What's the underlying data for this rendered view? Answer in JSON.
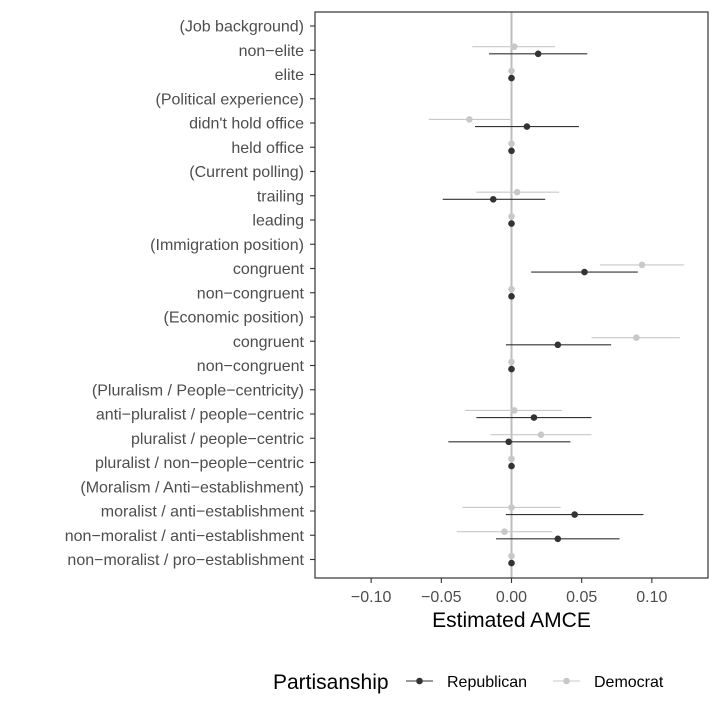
{
  "chart_data": {
    "type": "scatter",
    "xlabel": "Estimated AMCE",
    "xlim": [
      -0.14,
      0.14
    ],
    "xticks": [
      -0.1,
      -0.05,
      0.0,
      0.05,
      0.1
    ],
    "xtick_labels": [
      "−0.10",
      "−0.05",
      "0.00",
      "0.05",
      "0.10"
    ],
    "grid": false,
    "reference_line": 0,
    "categories": [
      "(Job background)",
      "non−elite",
      "elite",
      "(Political experience)",
      "didn't hold office",
      "held office",
      "(Current polling)",
      "trailing",
      "leading",
      "(Immigration position)",
      "congruent ",
      "non−congruent ",
      "(Economic position)",
      "congruent",
      "non−congruent",
      "(Pluralism / People−centricity)",
      "anti−pluralist / people−centric",
      "pluralist / people−centric",
      "pluralist / non−people−centric",
      "(Moralism / Anti−establishment)",
      "moralist / anti−establishment",
      "non−moralist / anti−establishment",
      "non−moralist / pro−establishment"
    ],
    "series": [
      {
        "name": "Republican",
        "color": "#333333",
        "values": [
          null,
          0.019,
          0.0,
          null,
          0.011,
          0.0,
          null,
          -0.013,
          0.0,
          null,
          0.052,
          0.0,
          null,
          0.033,
          0.0,
          null,
          0.016,
          -0.002,
          0.0,
          null,
          0.045,
          0.033,
          0.0
        ],
        "lower": [
          null,
          -0.016,
          null,
          null,
          -0.026,
          null,
          null,
          -0.049,
          null,
          null,
          0.014,
          null,
          null,
          -0.004,
          null,
          null,
          -0.025,
          -0.045,
          null,
          null,
          -0.004,
          -0.011,
          null
        ],
        "upper": [
          null,
          0.054,
          null,
          null,
          0.048,
          null,
          null,
          0.024,
          null,
          null,
          0.09,
          null,
          null,
          0.071,
          null,
          null,
          0.057,
          0.042,
          null,
          null,
          0.094,
          0.077,
          null
        ]
      },
      {
        "name": "Democrat",
        "color": "#c8c8c8",
        "values": [
          null,
          0.002,
          0.0,
          null,
          -0.03,
          0.0,
          null,
          0.004,
          0.0,
          null,
          0.093,
          0.0,
          null,
          0.089,
          0.0,
          null,
          0.002,
          0.021,
          0.0,
          null,
          0.0,
          -0.005,
          0.0
        ],
        "lower": [
          null,
          -0.028,
          null,
          null,
          -0.059,
          null,
          null,
          -0.025,
          null,
          null,
          0.063,
          null,
          null,
          0.057,
          null,
          null,
          -0.033,
          -0.015,
          null,
          null,
          -0.035,
          -0.039,
          null
        ],
        "upper": [
          null,
          0.031,
          null,
          null,
          -0.001,
          null,
          null,
          0.034,
          null,
          null,
          0.123,
          null,
          null,
          0.12,
          null,
          null,
          0.036,
          0.057,
          null,
          null,
          0.035,
          0.029,
          null
        ]
      }
    ],
    "legend": {
      "title": "Partisanship",
      "position": "bottom",
      "entries": [
        "Republican",
        "Democrat"
      ]
    }
  }
}
